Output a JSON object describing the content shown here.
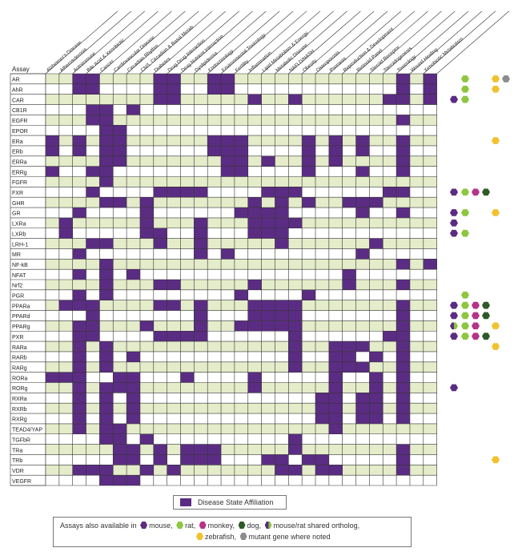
{
  "chart_data": {
    "type": "heatmap",
    "row_header": "Assay",
    "diseases": [
      "Alzheimer's Disease",
      "Atherosclerosis",
      "Autoimmune",
      "Bile Acid & Xenobiotic",
      "Cancer",
      "Cardiovascular Disease",
      "Circadian Rhythm",
      "CNS, Circadian & Basal Metab",
      "Diabetes",
      "Drug Drug Interaction",
      "Drug Nutrient Interaction",
      "Dyslipidemia",
      "Endocrinology",
      "Environmental Toxicology",
      "Fertility",
      "Inflammation",
      "Lipid Metabolism & Energy",
      "Metabolic Disease",
      "NAFLD/NASH",
      "Obesity",
      "Osteoporosis",
      "Psoriasis",
      "Reproduction & Development",
      "Retinoid Panel",
      "Steroid Receptor",
      "Steroidogenesis",
      "Toxicology",
      "Wound Healing",
      "Xenobiotic Metabolism"
    ],
    "assays": [
      "AR",
      "AhR",
      "CAR",
      "CB1R",
      "EGFR",
      "EPOR",
      "ERa",
      "ERb",
      "ERRa",
      "ERRg",
      "FGFR",
      "FXR",
      "GHR",
      "GR",
      "LXRa",
      "LXRb",
      "LRH-1",
      "MR",
      "NF-kB",
      "NFAT",
      "Nrf2",
      "PGR",
      "PPARa",
      "PPARd",
      "PPARg",
      "PXR",
      "RARa",
      "RARb",
      "RARg",
      "RORa",
      "RORg",
      "RXRa",
      "RXRb",
      "RXRg",
      "TEAD4/YAP",
      "TGFbR",
      "TRa",
      "TRb",
      "VDR",
      "VEGFR"
    ],
    "matrix": [
      [
        0,
        0,
        1,
        1,
        0,
        0,
        0,
        0,
        1,
        1,
        0,
        0,
        1,
        1,
        0,
        0,
        0,
        0,
        0,
        0,
        0,
        0,
        0,
        0,
        0,
        0,
        1,
        0,
        1
      ],
      [
        0,
        0,
        1,
        1,
        0,
        0,
        0,
        0,
        1,
        1,
        0,
        0,
        1,
        1,
        0,
        0,
        0,
        0,
        0,
        0,
        0,
        0,
        0,
        0,
        0,
        0,
        1,
        0,
        1
      ],
      [
        0,
        0,
        0,
        0,
        0,
        0,
        0,
        0,
        1,
        1,
        0,
        0,
        0,
        0,
        0,
        1,
        0,
        0,
        1,
        0,
        0,
        0,
        0,
        0,
        0,
        1,
        1,
        0,
        1
      ],
      [
        0,
        0,
        0,
        1,
        1,
        0,
        1,
        0,
        0,
        0,
        0,
        0,
        0,
        0,
        0,
        0,
        0,
        0,
        0,
        0,
        0,
        0,
        0,
        0,
        0,
        0,
        0,
        0,
        0
      ],
      [
        0,
        0,
        0,
        1,
        1,
        0,
        0,
        0,
        0,
        0,
        0,
        0,
        0,
        0,
        0,
        0,
        0,
        0,
        0,
        0,
        0,
        0,
        0,
        0,
        0,
        0,
        1,
        0,
        0
      ],
      [
        0,
        0,
        0,
        0,
        1,
        1,
        0,
        0,
        0,
        0,
        0,
        0,
        0,
        0,
        0,
        0,
        0,
        0,
        0,
        0,
        0,
        0,
        0,
        0,
        0,
        0,
        0,
        0,
        0
      ],
      [
        1,
        0,
        1,
        0,
        1,
        1,
        0,
        0,
        0,
        0,
        0,
        0,
        1,
        1,
        1,
        0,
        0,
        0,
        0,
        1,
        0,
        1,
        0,
        1,
        0,
        0,
        1,
        0,
        0
      ],
      [
        1,
        0,
        1,
        0,
        1,
        1,
        0,
        0,
        0,
        0,
        0,
        0,
        1,
        1,
        1,
        0,
        0,
        0,
        0,
        1,
        0,
        1,
        0,
        1,
        0,
        0,
        1,
        0,
        0
      ],
      [
        0,
        0,
        0,
        0,
        1,
        1,
        0,
        0,
        0,
        0,
        0,
        0,
        0,
        1,
        1,
        0,
        1,
        0,
        0,
        1,
        0,
        1,
        0,
        0,
        0,
        0,
        1,
        0,
        0
      ],
      [
        1,
        0,
        0,
        1,
        1,
        0,
        0,
        0,
        0,
        0,
        0,
        0,
        0,
        1,
        1,
        0,
        0,
        0,
        0,
        1,
        0,
        0,
        0,
        1,
        0,
        0,
        1,
        0,
        0
      ],
      [
        0,
        0,
        0,
        0,
        1,
        0,
        0,
        0,
        0,
        0,
        0,
        0,
        0,
        0,
        0,
        0,
        0,
        0,
        0,
        0,
        0,
        0,
        0,
        0,
        0,
        0,
        0,
        0,
        0
      ],
      [
        0,
        0,
        0,
        1,
        0,
        0,
        0,
        0,
        1,
        1,
        1,
        1,
        0,
        0,
        0,
        0,
        1,
        1,
        1,
        0,
        0,
        0,
        0,
        0,
        0,
        1,
        1,
        0,
        0
      ],
      [
        0,
        0,
        0,
        0,
        1,
        1,
        0,
        1,
        0,
        0,
        0,
        0,
        0,
        0,
        0,
        1,
        0,
        1,
        0,
        1,
        0,
        0,
        1,
        1,
        1,
        0,
        0,
        0,
        0
      ],
      [
        0,
        0,
        1,
        0,
        0,
        0,
        0,
        1,
        0,
        0,
        0,
        0,
        0,
        0,
        1,
        1,
        1,
        1,
        0,
        0,
        0,
        0,
        0,
        1,
        0,
        0,
        1,
        0,
        0
      ],
      [
        0,
        1,
        0,
        0,
        0,
        0,
        0,
        1,
        0,
        0,
        0,
        1,
        0,
        0,
        0,
        1,
        1,
        1,
        1,
        0,
        0,
        0,
        0,
        0,
        0,
        0,
        0,
        0,
        0
      ],
      [
        0,
        1,
        0,
        0,
        0,
        0,
        0,
        1,
        1,
        0,
        0,
        1,
        0,
        0,
        0,
        1,
        1,
        1,
        0,
        0,
        0,
        0,
        0,
        0,
        0,
        0,
        0,
        0,
        0
      ],
      [
        0,
        0,
        0,
        1,
        1,
        0,
        0,
        0,
        1,
        0,
        0,
        1,
        0,
        0,
        0,
        0,
        0,
        1,
        0,
        0,
        0,
        0,
        0,
        0,
        1,
        0,
        0,
        0,
        0
      ],
      [
        0,
        0,
        1,
        0,
        0,
        0,
        0,
        0,
        0,
        0,
        0,
        1,
        0,
        1,
        0,
        0,
        0,
        0,
        0,
        0,
        0,
        0,
        0,
        1,
        0,
        0,
        0,
        0,
        0
      ],
      [
        0,
        0,
        0,
        0,
        1,
        0,
        0,
        0,
        0,
        0,
        0,
        0,
        0,
        0,
        0,
        0,
        0,
        0,
        0,
        0,
        0,
        0,
        0,
        0,
        0,
        0,
        1,
        0,
        1
      ],
      [
        0,
        0,
        1,
        0,
        1,
        0,
        1,
        0,
        0,
        0,
        0,
        0,
        0,
        0,
        0,
        0,
        0,
        0,
        0,
        0,
        0,
        0,
        1,
        0,
        0,
        0,
        0,
        0,
        0
      ],
      [
        0,
        0,
        0,
        0,
        1,
        0,
        0,
        0,
        1,
        1,
        0,
        0,
        0,
        0,
        0,
        1,
        0,
        0,
        0,
        0,
        0,
        0,
        1,
        0,
        0,
        0,
        1,
        0,
        0
      ],
      [
        0,
        0,
        1,
        0,
        1,
        0,
        0,
        0,
        0,
        0,
        0,
        0,
        0,
        0,
        1,
        0,
        0,
        0,
        0,
        1,
        0,
        0,
        0,
        0,
        0,
        0,
        0,
        0,
        0
      ],
      [
        0,
        1,
        1,
        1,
        0,
        0,
        0,
        0,
        1,
        1,
        0,
        1,
        0,
        0,
        0,
        1,
        1,
        1,
        1,
        0,
        0,
        0,
        0,
        0,
        0,
        0,
        1,
        0,
        0
      ],
      [
        0,
        0,
        0,
        1,
        0,
        0,
        0,
        0,
        0,
        0,
        0,
        1,
        0,
        0,
        0,
        1,
        1,
        1,
        1,
        0,
        0,
        0,
        0,
        0,
        0,
        0,
        1,
        0,
        0
      ],
      [
        0,
        0,
        1,
        1,
        0,
        0,
        0,
        1,
        0,
        0,
        0,
        1,
        0,
        0,
        1,
        1,
        1,
        1,
        1,
        0,
        0,
        0,
        0,
        0,
        0,
        0,
        1,
        0,
        0
      ],
      [
        0,
        0,
        1,
        1,
        0,
        0,
        0,
        0,
        1,
        1,
        1,
        1,
        0,
        0,
        0,
        0,
        0,
        0,
        1,
        0,
        0,
        0,
        0,
        0,
        0,
        1,
        1,
        0,
        0
      ],
      [
        0,
        0,
        1,
        0,
        1,
        0,
        0,
        0,
        0,
        0,
        0,
        0,
        0,
        0,
        0,
        0,
        0,
        0,
        1,
        0,
        0,
        1,
        1,
        1,
        0,
        0,
        1,
        0,
        0
      ],
      [
        0,
        0,
        1,
        0,
        1,
        0,
        1,
        0,
        0,
        0,
        0,
        0,
        0,
        0,
        0,
        0,
        0,
        0,
        1,
        0,
        0,
        1,
        1,
        0,
        1,
        0,
        1,
        0,
        0
      ],
      [
        0,
        0,
        1,
        0,
        1,
        0,
        0,
        0,
        0,
        0,
        0,
        0,
        0,
        0,
        0,
        0,
        0,
        0,
        1,
        0,
        0,
        1,
        1,
        1,
        0,
        0,
        1,
        0,
        0
      ],
      [
        1,
        1,
        1,
        0,
        0,
        1,
        1,
        0,
        0,
        0,
        1,
        0,
        0,
        0,
        0,
        1,
        0,
        0,
        0,
        0,
        0,
        1,
        0,
        0,
        1,
        0,
        1,
        0,
        0
      ],
      [
        0,
        0,
        1,
        0,
        1,
        1,
        1,
        0,
        0,
        0,
        0,
        0,
        0,
        0,
        0,
        1,
        0,
        0,
        0,
        0,
        0,
        1,
        0,
        0,
        1,
        0,
        1,
        0,
        0
      ],
      [
        0,
        0,
        1,
        0,
        1,
        0,
        1,
        0,
        0,
        0,
        0,
        0,
        0,
        0,
        0,
        0,
        0,
        0,
        0,
        0,
        1,
        1,
        0,
        1,
        1,
        0,
        1,
        0,
        0
      ],
      [
        0,
        0,
        1,
        0,
        1,
        0,
        1,
        0,
        0,
        0,
        0,
        0,
        0,
        0,
        0,
        0,
        0,
        0,
        0,
        0,
        1,
        1,
        0,
        1,
        1,
        0,
        1,
        0,
        0
      ],
      [
        0,
        0,
        1,
        0,
        1,
        0,
        1,
        0,
        0,
        0,
        0,
        0,
        0,
        0,
        0,
        0,
        0,
        0,
        0,
        0,
        1,
        1,
        0,
        1,
        1,
        0,
        1,
        0,
        0
      ],
      [
        0,
        0,
        1,
        0,
        1,
        1,
        0,
        0,
        0,
        0,
        0,
        0,
        0,
        0,
        0,
        0,
        0,
        0,
        0,
        0,
        0,
        1,
        0,
        0,
        0,
        0,
        0,
        0,
        0
      ],
      [
        0,
        0,
        0,
        0,
        1,
        1,
        0,
        1,
        0,
        0,
        0,
        0,
        0,
        0,
        0,
        0,
        0,
        0,
        1,
        0,
        0,
        0,
        0,
        0,
        0,
        0,
        0,
        0,
        0
      ],
      [
        0,
        0,
        0,
        0,
        0,
        1,
        1,
        0,
        1,
        0,
        1,
        1,
        1,
        0,
        0,
        0,
        0,
        0,
        1,
        0,
        0,
        0,
        0,
        0,
        0,
        0,
        1,
        0,
        0
      ],
      [
        0,
        0,
        0,
        0,
        0,
        1,
        1,
        0,
        1,
        0,
        1,
        1,
        1,
        0,
        0,
        0,
        1,
        1,
        0,
        1,
        1,
        0,
        0,
        0,
        0,
        0,
        1,
        0,
        0
      ],
      [
        0,
        0,
        1,
        1,
        1,
        0,
        0,
        1,
        0,
        1,
        0,
        0,
        0,
        0,
        0,
        0,
        0,
        1,
        1,
        0,
        1,
        1,
        0,
        0,
        0,
        0,
        1,
        0,
        0
      ],
      [
        0,
        0,
        0,
        0,
        1,
        1,
        1,
        0,
        0,
        0,
        0,
        0,
        0,
        0,
        0,
        0,
        0,
        0,
        0,
        0,
        0,
        0,
        0,
        0,
        0,
        0,
        0,
        0,
        0
      ]
    ],
    "species_availability": {
      "AR": [
        "rat",
        "zebrafish",
        "mutant"
      ],
      "AhR": [
        "rat",
        "zebrafish"
      ],
      "CAR": [
        "mouse",
        "rat"
      ],
      "ERa": [
        "zebrafish"
      ],
      "FXR": [
        "mouse",
        "rat",
        "monkey",
        "dog"
      ],
      "GR": [
        "mouse",
        "rat",
        "zebrafish"
      ],
      "LXRa": [
        "mouse"
      ],
      "LXRb": [
        "mouse",
        "rat"
      ],
      "PGR": [
        "rat"
      ],
      "PPARa": [
        "mouse",
        "rat",
        "monkey",
        "dog"
      ],
      "PPARd": [
        "mouse",
        "rat",
        "monkey",
        "dog"
      ],
      "PPARg": [
        "shared",
        "rat",
        "monkey",
        "zebrafish"
      ],
      "PXR": [
        "mouse",
        "rat",
        "monkey",
        "dog"
      ],
      "RARa": [
        "zebrafish"
      ],
      "RORg": [
        "mouse"
      ],
      "TRb": [
        "zebrafish"
      ]
    },
    "species_columns": [
      "mouse",
      "rat",
      "monkey",
      "dog",
      "zebrafish",
      "mutant"
    ],
    "colors": {
      "affiliated": "#5b2c83",
      "row_even": "#e4ecca",
      "row_odd": "#ffffff",
      "mouse": "#5b2c83",
      "rat": "#8dc63f",
      "monkey": "#b5338a",
      "dog": "#2d5a27",
      "zebrafish": "#f2c12e",
      "mutant": "#8c8c8c",
      "grid": "#333333"
    }
  },
  "legend": {
    "affiliation_label": "Disease State Affiliation",
    "availability_prefix": "Assays also available in",
    "mouse": "mouse,",
    "rat": "rat,",
    "monkey": "monkey,",
    "dog": "dog,",
    "shared": "mouse/rat shared ortholog,",
    "zebrafish": "zebrafish,",
    "mutant": "mutant gene where noted"
  }
}
